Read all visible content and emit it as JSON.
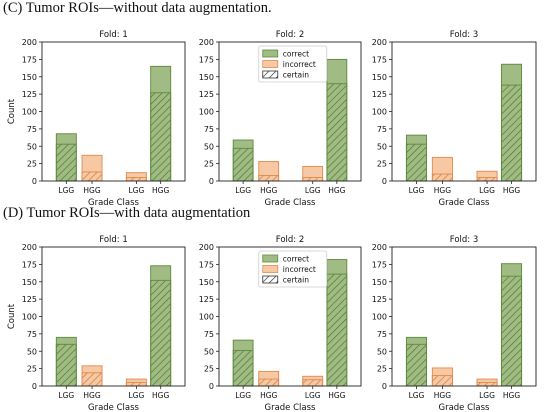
{
  "panels": [
    {
      "label": "(C) Tumor ROIs—without data augmentation."
    },
    {
      "label": "(D) Tumor ROIs—with data augmentation"
    }
  ],
  "colors": {
    "correct_fill": "#a0bb83",
    "correct_edge": "#5e8a3c",
    "incorrect_fill": "#f6c9a4",
    "incorrect_edge": "#e08a4e",
    "hatch_correct": "#4f7a30",
    "hatch_incorrect": "#d27a3c"
  },
  "chart_data": [
    {
      "type": "bar",
      "stacked": "overlay",
      "title": "Fold: 1",
      "xlabel": "Grade Class",
      "ylabel": "Count",
      "ylim": [
        0,
        200
      ],
      "yticks": [
        0,
        25,
        50,
        75,
        100,
        125,
        150,
        175,
        200
      ],
      "group_labels": [
        "LGG",
        "HGG",
        "LGG",
        "HGG"
      ],
      "series": [
        {
          "name": "correct",
          "values": [
            68,
            null,
            null,
            165
          ]
        },
        {
          "name": "incorrect",
          "values": [
            null,
            37,
            12,
            null
          ]
        },
        {
          "name": "certain",
          "values": [
            53,
            13,
            5,
            127
          ]
        }
      ]
    },
    {
      "type": "bar",
      "stacked": "overlay",
      "title": "Fold: 2",
      "xlabel": "Grade Class",
      "ylabel": "",
      "ylim": [
        0,
        200
      ],
      "yticks": [
        0,
        25,
        50,
        75,
        100,
        125,
        150,
        175,
        200
      ],
      "group_labels": [
        "LGG",
        "HGG",
        "LGG",
        "HGG"
      ],
      "legend": "top-center",
      "series": [
        {
          "name": "correct",
          "values": [
            59,
            null,
            null,
            175
          ]
        },
        {
          "name": "incorrect",
          "values": [
            null,
            28,
            21,
            null
          ]
        },
        {
          "name": "certain",
          "values": [
            47,
            8,
            5,
            140
          ]
        }
      ]
    },
    {
      "type": "bar",
      "stacked": "overlay",
      "title": "Fold: 3",
      "xlabel": "Grade Class",
      "ylabel": "",
      "ylim": [
        0,
        200
      ],
      "yticks": [
        0,
        25,
        50,
        75,
        100,
        125,
        150,
        175,
        200
      ],
      "group_labels": [
        "LGG",
        "HGG",
        "LGG",
        "HGG"
      ],
      "series": [
        {
          "name": "correct",
          "values": [
            66,
            null,
            null,
            168
          ]
        },
        {
          "name": "incorrect",
          "values": [
            null,
            34,
            14,
            null
          ]
        },
        {
          "name": "certain",
          "values": [
            53,
            10,
            5,
            138
          ]
        }
      ]
    },
    {
      "type": "bar",
      "stacked": "overlay",
      "title": "Fold: 1",
      "xlabel": "Grade Class",
      "ylabel": "Count",
      "ylim": [
        0,
        200
      ],
      "yticks": [
        0,
        25,
        50,
        75,
        100,
        125,
        150,
        175,
        200
      ],
      "group_labels": [
        "LGG",
        "HGG",
        "LGG",
        "HGG"
      ],
      "series": [
        {
          "name": "correct",
          "values": [
            70,
            null,
            null,
            173
          ]
        },
        {
          "name": "incorrect",
          "values": [
            null,
            29,
            10,
            null
          ]
        },
        {
          "name": "certain",
          "values": [
            60,
            19,
            5,
            152
          ]
        }
      ]
    },
    {
      "type": "bar",
      "stacked": "overlay",
      "title": "Fold: 2",
      "xlabel": "Grade Class",
      "ylabel": "",
      "ylim": [
        0,
        200
      ],
      "yticks": [
        0,
        25,
        50,
        75,
        100,
        125,
        150,
        175,
        200
      ],
      "group_labels": [
        "LGG",
        "HGG",
        "LGG",
        "HGG"
      ],
      "legend": "top-center",
      "series": [
        {
          "name": "correct",
          "values": [
            66,
            null,
            null,
            182
          ]
        },
        {
          "name": "incorrect",
          "values": [
            null,
            21,
            14,
            null
          ]
        },
        {
          "name": "certain",
          "values": [
            51,
            10,
            9,
            161
          ]
        }
      ]
    },
    {
      "type": "bar",
      "stacked": "overlay",
      "title": "Fold: 3",
      "xlabel": "Grade Class",
      "ylabel": "",
      "ylim": [
        0,
        200
      ],
      "yticks": [
        0,
        25,
        50,
        75,
        100,
        125,
        150,
        175,
        200
      ],
      "group_labels": [
        "LGG",
        "HGG",
        "LGG",
        "HGG"
      ],
      "series": [
        {
          "name": "correct",
          "values": [
            70,
            null,
            null,
            176
          ]
        },
        {
          "name": "incorrect",
          "values": [
            null,
            26,
            10,
            null
          ]
        },
        {
          "name": "certain",
          "values": [
            60,
            15,
            5,
            158
          ]
        }
      ]
    }
  ]
}
